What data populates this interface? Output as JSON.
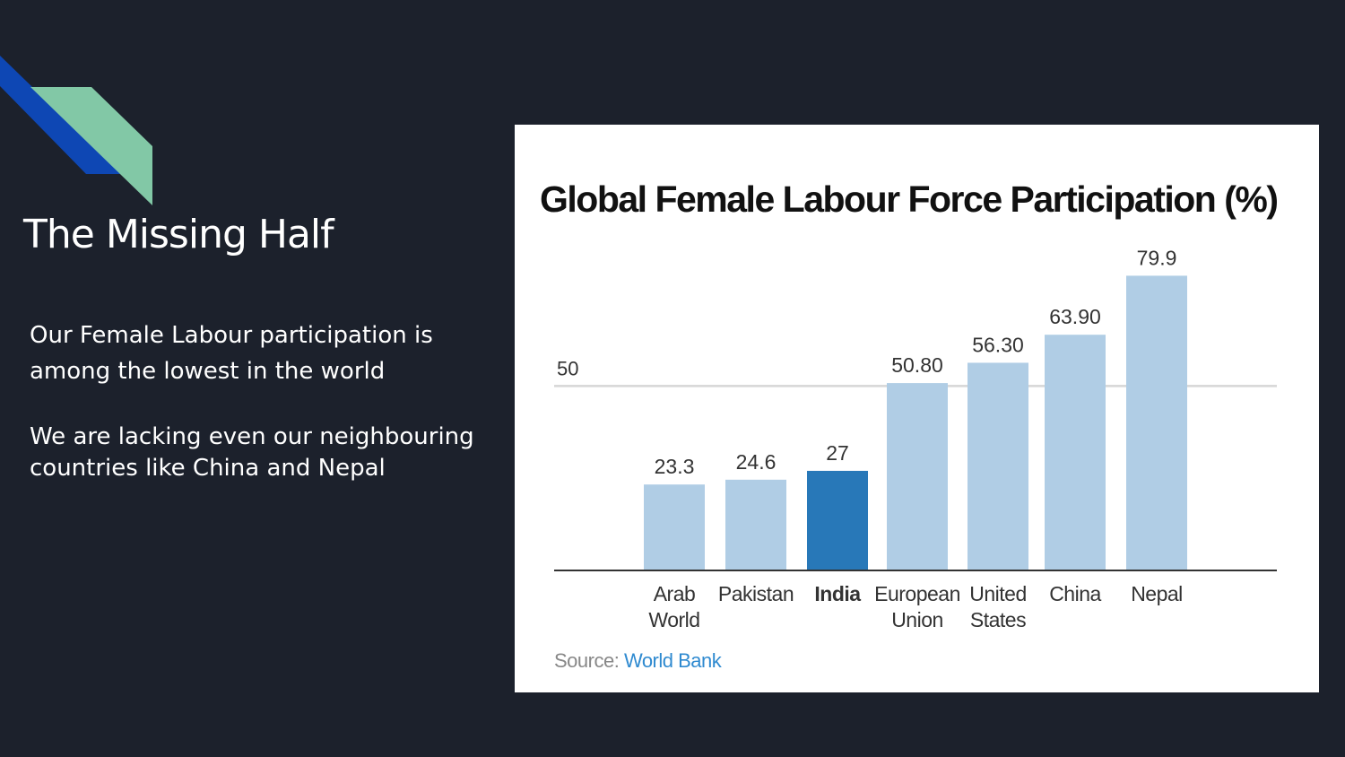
{
  "slide": {
    "title": "The Missing Half",
    "paragraph1": "Our Female Labour  participation is among the lowest in the world",
    "paragraph2": "We are lacking even our neighbouring countries like China and Nepal"
  },
  "colors": {
    "background": "#1c212c",
    "accent_blue": "#0e47b4",
    "accent_green": "#82c8a6",
    "bar_default": "#b0cde5",
    "bar_highlight": "#2878b8",
    "source_link": "#2f8ad0"
  },
  "chart_data": {
    "type": "bar",
    "title": "Global Female Labour Force Participation (%)",
    "categories": [
      [
        "Arab",
        "World"
      ],
      [
        "Pakistan"
      ],
      [
        "India"
      ],
      [
        "European",
        "Union"
      ],
      [
        "United",
        "States"
      ],
      [
        "China"
      ],
      [
        "Nepal"
      ]
    ],
    "values": [
      23.3,
      24.6,
      27,
      50.8,
      56.3,
      63.9,
      79.9
    ],
    "value_labels": [
      "23.3",
      "24.6",
      "27",
      "50.80",
      "56.30",
      "63.90",
      "79.9"
    ],
    "highlight_category": "India",
    "reference_line": {
      "value": 50,
      "label": "50"
    },
    "ylim": [
      0,
      80
    ],
    "xlabel": "",
    "ylabel": "",
    "grid": false,
    "legend": "none",
    "source_label": "Source:",
    "source_name": "World Bank"
  }
}
